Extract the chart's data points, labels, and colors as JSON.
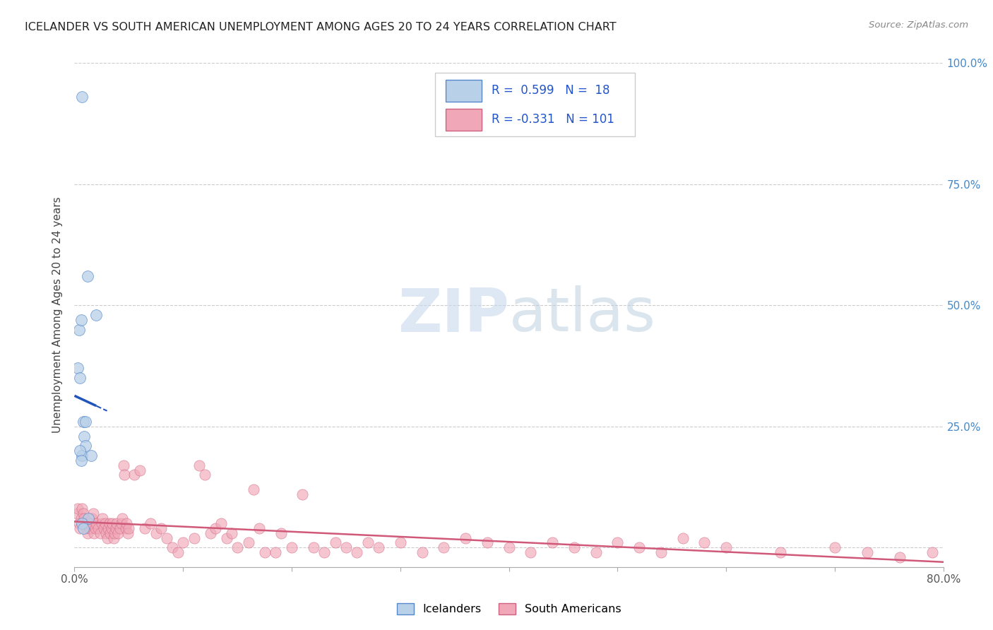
{
  "title": "ICELANDER VS SOUTH AMERICAN UNEMPLOYMENT AMONG AGES 20 TO 24 YEARS CORRELATION CHART",
  "source": "Source: ZipAtlas.com",
  "ylabel": "Unemployment Among Ages 20 to 24 years",
  "xlim": [
    0.0,
    0.8
  ],
  "ylim": [
    -0.04,
    1.0
  ],
  "ytick_positions": [
    0.0,
    0.25,
    0.5,
    0.75,
    1.0
  ],
  "ytick_labels_right": [
    "",
    "25.0%",
    "50.0%",
    "75.0%",
    "100.0%"
  ],
  "xtick_positions": [
    0.0,
    0.1,
    0.2,
    0.3,
    0.4,
    0.5,
    0.6,
    0.7,
    0.8
  ],
  "xtick_labels": [
    "0.0%",
    "",
    "",
    "",
    "",
    "",
    "",
    "",
    "80.0%"
  ],
  "icelander_fill": "#b8d0e8",
  "icelander_edge": "#5588cc",
  "sa_fill": "#f0a8b8",
  "sa_edge": "#d06080",
  "blue_line": "#2255bb",
  "pink_line": "#d05878",
  "legend_r_color": "#2255cc",
  "watermark_color": "#ccd8ef",
  "R_iceland": 0.599,
  "N_iceland": 18,
  "R_sa": -0.331,
  "N_sa": 101,
  "iceland_x": [
    0.007,
    0.004,
    0.006,
    0.003,
    0.005,
    0.008,
    0.01,
    0.012,
    0.009,
    0.007,
    0.015,
    0.01,
    0.02,
    0.005,
    0.006,
    0.013,
    0.007,
    0.008
  ],
  "iceland_y": [
    0.93,
    0.45,
    0.47,
    0.37,
    0.35,
    0.26,
    0.26,
    0.56,
    0.23,
    0.19,
    0.19,
    0.21,
    0.48,
    0.2,
    0.18,
    0.06,
    0.05,
    0.04
  ],
  "sa_x": [
    0.002,
    0.003,
    0.004,
    0.005,
    0.006,
    0.007,
    0.008,
    0.009,
    0.01,
    0.011,
    0.012,
    0.013,
    0.014,
    0.015,
    0.016,
    0.017,
    0.018,
    0.019,
    0.02,
    0.022,
    0.024,
    0.025,
    0.026,
    0.027,
    0.028,
    0.029,
    0.03,
    0.031,
    0.032,
    0.033,
    0.034,
    0.035,
    0.036,
    0.037,
    0.038,
    0.039,
    0.04,
    0.042,
    0.043,
    0.044,
    0.045,
    0.046,
    0.047,
    0.048,
    0.049,
    0.05,
    0.055,
    0.06,
    0.065,
    0.07,
    0.075,
    0.08,
    0.085,
    0.09,
    0.095,
    0.1,
    0.11,
    0.115,
    0.12,
    0.125,
    0.13,
    0.135,
    0.14,
    0.145,
    0.15,
    0.16,
    0.165,
    0.17,
    0.175,
    0.185,
    0.19,
    0.2,
    0.21,
    0.22,
    0.23,
    0.24,
    0.25,
    0.26,
    0.27,
    0.28,
    0.3,
    0.32,
    0.34,
    0.36,
    0.38,
    0.4,
    0.42,
    0.44,
    0.46,
    0.48,
    0.5,
    0.52,
    0.54,
    0.56,
    0.58,
    0.6,
    0.65,
    0.7,
    0.73,
    0.76,
    0.79
  ],
  "sa_y": [
    0.12,
    0.13,
    0.1,
    0.09,
    0.11,
    0.13,
    0.12,
    0.11,
    0.1,
    0.09,
    0.08,
    0.1,
    0.09,
    0.1,
    0.11,
    0.12,
    0.08,
    0.09,
    0.1,
    0.09,
    0.08,
    0.1,
    0.11,
    0.09,
    0.1,
    0.08,
    0.07,
    0.09,
    0.1,
    0.08,
    0.09,
    0.1,
    0.07,
    0.08,
    0.09,
    0.1,
    0.08,
    0.09,
    0.1,
    0.11,
    0.22,
    0.2,
    0.09,
    0.1,
    0.08,
    0.09,
    0.2,
    0.21,
    0.09,
    0.1,
    0.08,
    0.09,
    0.07,
    0.05,
    0.04,
    0.06,
    0.07,
    0.22,
    0.2,
    0.08,
    0.09,
    0.1,
    0.07,
    0.08,
    0.05,
    0.06,
    0.17,
    0.09,
    0.04,
    0.04,
    0.08,
    0.05,
    0.16,
    0.05,
    0.04,
    0.06,
    0.05,
    0.04,
    0.06,
    0.05,
    0.06,
    0.04,
    0.05,
    0.07,
    0.06,
    0.05,
    0.04,
    0.06,
    0.05,
    0.04,
    0.06,
    0.05,
    0.04,
    0.07,
    0.06,
    0.05,
    0.04,
    0.05,
    0.04,
    0.03,
    0.04
  ]
}
